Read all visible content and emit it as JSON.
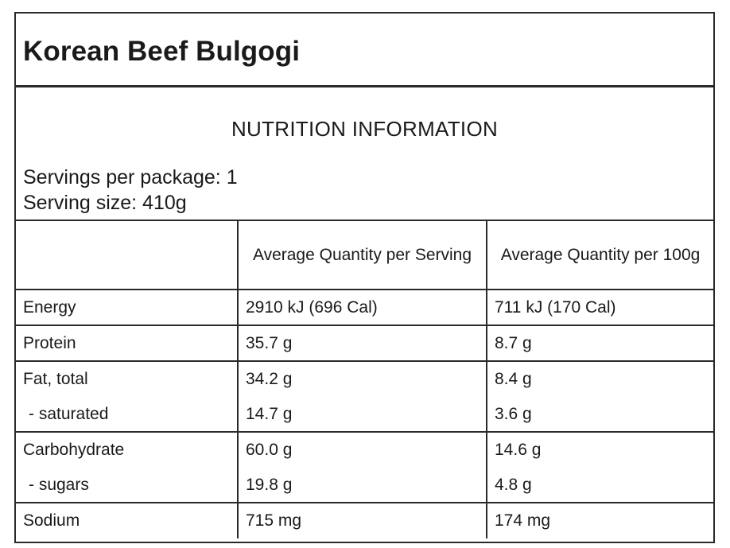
{
  "product": {
    "title": "Korean Beef Bulgogi"
  },
  "panel": {
    "heading": "NUTRITION INFORMATION",
    "servings_per_package": "Servings per package: 1",
    "serving_size": "Serving size: 410g"
  },
  "table": {
    "headers": [
      "",
      "Average Quantity per Serving",
      "Average Quantity per 100g"
    ],
    "rows": [
      {
        "label": "Energy",
        "per_serving": "2910 kJ (696 Cal)",
        "per_100g": "711 kJ (170 Cal)"
      },
      {
        "label": "Protein",
        "per_serving": "35.7 g",
        "per_100g": "8.7 g"
      },
      {
        "label": "Fat, total",
        "per_serving": "34.2 g",
        "per_100g": "8.4 g"
      },
      {
        "label": "- saturated",
        "per_serving": "14.7 g",
        "per_100g": "3.6 g"
      },
      {
        "label": "Carbohydrate",
        "per_serving": "60.0 g",
        "per_100g": "14.6 g"
      },
      {
        "label": "- sugars",
        "per_serving": "19.8 g",
        "per_100g": "4.8 g"
      },
      {
        "label": "Sodium",
        "per_serving": "715 mg",
        "per_100g": "174 mg"
      }
    ]
  }
}
